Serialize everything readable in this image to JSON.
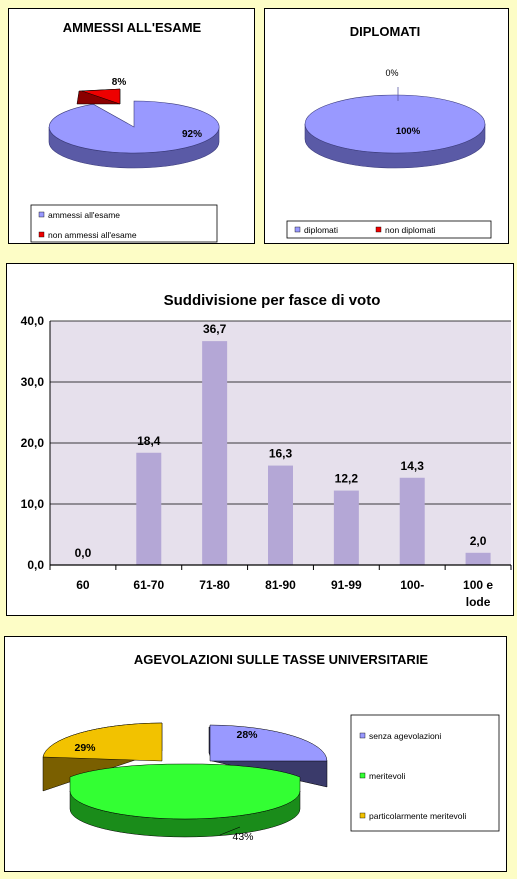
{
  "colors": {
    "lavender": "#9999ff",
    "lavender_dark": "#5a5aa6",
    "red": "#ee0000",
    "red_dark": "#8a0000",
    "bar": "#b4a7d6",
    "plot_bg": "#e6e0ec",
    "green": "#33ff33",
    "green_dark": "#1a8c1a",
    "gold": "#f2c200",
    "gold_dark": "#7a5f00",
    "navy": "#3a3a6a"
  },
  "chart_data": [
    {
      "type": "pie",
      "title": "AMMESSI ALL'ESAME",
      "slices": [
        {
          "label": "ammessi all'esame",
          "value": 92,
          "display": "92%"
        },
        {
          "label": "non ammessi all'esame",
          "value": 8,
          "display": "8%"
        }
      ],
      "legend": "bottom"
    },
    {
      "type": "pie",
      "title": "DIPLOMATI",
      "slices": [
        {
          "label": "diplomati",
          "value": 100,
          "display": "100%"
        },
        {
          "label": "non diplomati",
          "value": 0,
          "display": "0%"
        }
      ],
      "legend": "bottom"
    },
    {
      "type": "bar",
      "title": "Suddivisione per fasce di voto",
      "categories": [
        "60",
        "61-70",
        "71-80",
        "81-90",
        "91-99",
        "100-",
        "100 e lode"
      ],
      "values": [
        0.0,
        18.4,
        36.7,
        16.3,
        12.2,
        14.3,
        2.0
      ],
      "value_labels": [
        "0,0",
        "18,4",
        "36,7",
        "16,3",
        "12,2",
        "14,3",
        "2,0"
      ],
      "yticks": [
        "0,0",
        "10,0",
        "20,0",
        "30,0",
        "40,0"
      ],
      "ylim": [
        0,
        40
      ],
      "grid": true
    },
    {
      "type": "pie",
      "title": "AGEVOLAZIONI  SULLE TASSE UNIVERSITARIE",
      "slices": [
        {
          "label": "senza agevolazioni",
          "value": 28,
          "display": "28%"
        },
        {
          "label": "meritevoli",
          "value": 43,
          "display": "43%"
        },
        {
          "label": "particolarmente meritevoli",
          "value": 29,
          "display": "29%"
        }
      ],
      "legend": "right"
    }
  ]
}
